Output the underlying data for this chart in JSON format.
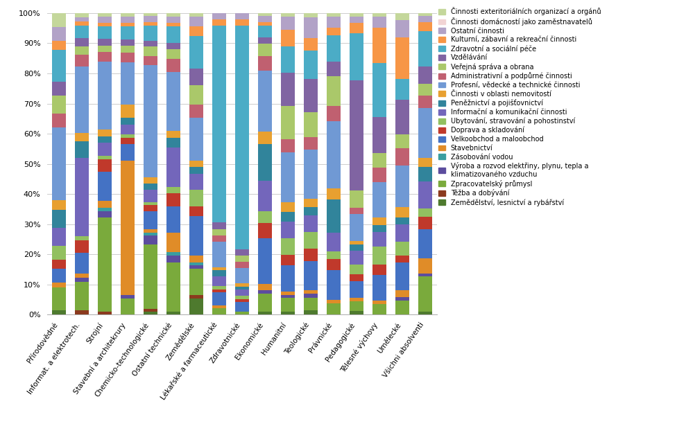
{
  "categories": [
    "Přírodovědné",
    "Informat. a elektrotech.",
    "Strojní",
    "Stavební a architekrury",
    "Chemicko-technologické",
    "Ostatní technické",
    "Zemědělské",
    "Lékařské a farmaceutické",
    "Zdravotnické",
    "Ekonomické",
    "Humanitní",
    "Teologické",
    "Právnické",
    "Pedagogické",
    "Tělesné výchovy",
    "Umělecké",
    "Všichni absolventi"
  ],
  "legend_labels": [
    "Zemědělství, lesnictví a rybářství",
    "Těžba a dobývání",
    "Zpracovatelský průmysl",
    "Výroba a rozvod elektřiny, plynu, tepla a\nklimatizovaného vzduchu",
    "Zásobování vodou",
    "Stavebnictví",
    "Velkoobchod a maloobchod",
    "Doprava a skladování",
    "Ubytování, stravování a pohostinství",
    "Informační a komunikační činnosti",
    "Peněžnictví a pojišťovnictví",
    "Činnosti v oblasti nemovitostí",
    "Profesní, vědecké a technické činnosti",
    "Administrativní a podpůrné činnosti",
    "Veřejná správa a obrana",
    "Vzdělávání",
    "Zdravotní a sociální péče",
    "Kulturní, zábavní a rekreační činnosti",
    "Ostatní činnosti",
    "Činnosti domácností jako zaměstnavatelů",
    "Činnosti exteritoriálních organizací a orgánů"
  ],
  "colors": [
    "#4e7a2e",
    "#8b3a1e",
    "#7aaa3c",
    "#5c4d9e",
    "#3a9ea0",
    "#e08c28",
    "#4472c4",
    "#c0392b",
    "#92c060",
    "#7366bb",
    "#31849b",
    "#e8a030",
    "#7099d4",
    "#c06070",
    "#aac86a",
    "#8064a2",
    "#4bacc6",
    "#f79646",
    "#b2a2c7",
    "#f2d4d4",
    "#c4d79b"
  ],
  "data": {
    "Přírodovědné": [
      1,
      0,
      5,
      0,
      0,
      1,
      3,
      2,
      3,
      4,
      4,
      2,
      16,
      3,
      4,
      3,
      7,
      2,
      3,
      0,
      3
    ],
    "Informat. a elektrotech.": [
      0,
      1,
      7,
      1,
      0,
      1,
      5,
      3,
      1,
      19,
      4,
      2,
      16,
      3,
      2,
      2,
      3,
      1,
      1,
      0,
      1
    ],
    "Strojní": [
      0,
      1,
      29,
      2,
      1,
      2,
      9,
      4,
      1,
      4,
      2,
      2,
      21,
      3,
      2,
      2,
      4,
      1,
      2,
      0,
      1
    ],
    "Stavební a architekrury": [
      0,
      0,
      5,
      1,
      0,
      41,
      5,
      2,
      1,
      3,
      2,
      4,
      13,
      3,
      2,
      2,
      4,
      1,
      2,
      0,
      1
    ],
    "Chemicko-technologické": [
      1,
      1,
      21,
      3,
      1,
      1,
      6,
      2,
      1,
      4,
      2,
      2,
      37,
      3,
      3,
      2,
      5,
      1,
      2,
      0,
      1
    ],
    "Ostatní technické": [
      1,
      0,
      15,
      2,
      1,
      6,
      8,
      4,
      2,
      12,
      3,
      2,
      18,
      4,
      3,
      2,
      5,
      1,
      2,
      0,
      1
    ],
    "Zemědělské": [
      5,
      1,
      8,
      1,
      1,
      2,
      12,
      3,
      5,
      5,
      2,
      2,
      13,
      4,
      6,
      5,
      10,
      3,
      3,
      0,
      1
    ],
    "Lékařské a farmaceutické": [
      0,
      0,
      2,
      0,
      0,
      1,
      4,
      1,
      1,
      3,
      2,
      1,
      8,
      2,
      2,
      2,
      62,
      2,
      2,
      0,
      0
    ],
    "Zdravotnické": [
      0,
      0,
      1,
      0,
      0,
      0,
      3,
      1,
      1,
      2,
      1,
      1,
      5,
      2,
      2,
      2,
      72,
      2,
      2,
      0,
      0
    ],
    "Ekonomické": [
      1,
      0,
      6,
      1,
      0,
      2,
      15,
      5,
      4,
      10,
      12,
      4,
      20,
      5,
      4,
      2,
      4,
      1,
      2,
      0,
      1
    ],
    "Humanitní": [
      1,
      0,
      4,
      1,
      0,
      1,
      8,
      3,
      5,
      5,
      3,
      3,
      15,
      4,
      10,
      10,
      8,
      5,
      4,
      0,
      1
    ],
    "Teologické": [
      1,
      0,
      3,
      1,
      0,
      1,
      7,
      3,
      4,
      4,
      2,
      2,
      12,
      3,
      6,
      8,
      7,
      3,
      5,
      0,
      1
    ],
    "Právnické": [
      0,
      0,
      3,
      0,
      0,
      1,
      8,
      3,
      2,
      5,
      9,
      3,
      18,
      4,
      8,
      4,
      7,
      2,
      3,
      0,
      1
    ],
    "Pedagogické": [
      1,
      0,
      3,
      0,
      0,
      1,
      5,
      2,
      3,
      4,
      2,
      1,
      8,
      2,
      5,
      33,
      14,
      3,
      2,
      0,
      1
    ],
    "Tělesné výchovy": [
      0,
      0,
      3,
      0,
      0,
      1,
      7,
      3,
      5,
      4,
      2,
      2,
      10,
      4,
      4,
      10,
      15,
      10,
      3,
      0,
      1
    ],
    "Umělecké": [
      0,
      0,
      4,
      1,
      0,
      2,
      8,
      2,
      4,
      5,
      2,
      3,
      12,
      5,
      4,
      10,
      6,
      12,
      5,
      0,
      2
    ],
    "Všichni absolventi": [
      1,
      0,
      12,
      1,
      0,
      5,
      10,
      4,
      3,
      9,
      5,
      3,
      17,
      4,
      4,
      6,
      12,
      3,
      2,
      0,
      1
    ]
  },
  "figsize": [
    9.76,
    6.31
  ],
  "dpi": 100,
  "bar_width": 0.6,
  "ylim": [
    0,
    100
  ],
  "yticks": [
    0,
    10,
    20,
    30,
    40,
    50,
    60,
    70,
    80,
    90,
    100
  ],
  "ytick_labels": [
    "0%",
    "10%",
    "20%",
    "30%",
    "40%",
    "50%",
    "60%",
    "70%",
    "80%",
    "90%",
    "100%"
  ],
  "grid_color": "#cccccc",
  "grid_lw": 0.7,
  "xlabel_fontsize": 7.5,
  "ylabel_fontsize": 8,
  "legend_fontsize": 7,
  "xlabel_rotation": 55
}
